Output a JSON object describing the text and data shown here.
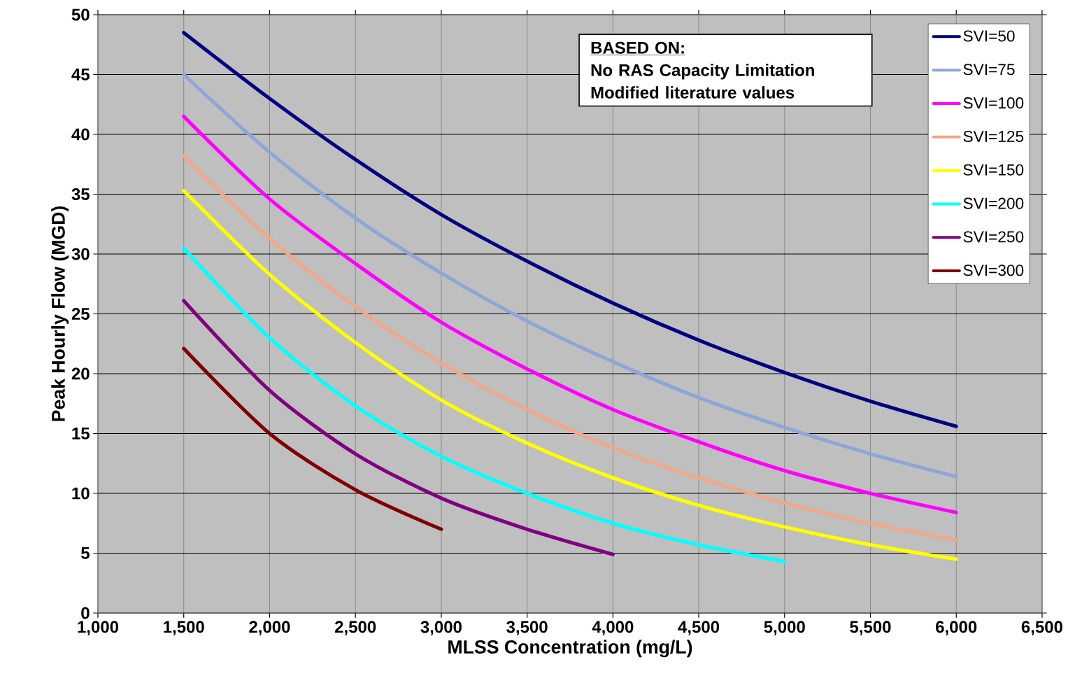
{
  "chart_data": {
    "type": "line",
    "xlabel": "MLSS Concentration (mg/L)",
    "ylabel": "Peak Hourly Flow (MGD)",
    "x": [
      1500,
      2000,
      2500,
      3000,
      3500,
      4000,
      4500,
      5000,
      5500,
      6000
    ],
    "xlim": [
      1000,
      6500
    ],
    "xticks": [
      {
        "value": 1000,
        "label": "1,000"
      },
      {
        "value": 1500,
        "label": "1,500"
      },
      {
        "value": 2000,
        "label": "2,000"
      },
      {
        "value": 2500,
        "label": "2,500"
      },
      {
        "value": 3000,
        "label": "3,000"
      },
      {
        "value": 3500,
        "label": "3,500"
      },
      {
        "value": 4000,
        "label": "4,000"
      },
      {
        "value": 4500,
        "label": "4,500"
      },
      {
        "value": 5000,
        "label": "5,000"
      },
      {
        "value": 5500,
        "label": "5,500"
      },
      {
        "value": 6000,
        "label": "6,000"
      },
      {
        "value": 6500,
        "label": "6,500"
      }
    ],
    "ylim": [
      0,
      50
    ],
    "yticks": [
      0,
      5,
      10,
      15,
      20,
      25,
      30,
      35,
      40,
      45,
      50
    ],
    "grid": true,
    "legend": "top right",
    "marker": "none",
    "line_style": "solid",
    "annotations": [
      "BASED ON:",
      "No RAS Capacity Limitation",
      "Modified literature values"
    ],
    "series": [
      {
        "name": "SVI=50",
        "color": "#000080",
        "values": [
          48.5,
          43.0,
          37.9,
          33.3,
          29.4,
          25.9,
          22.8,
          20.1,
          17.7,
          15.6
        ]
      },
      {
        "name": "SVI=75",
        "color": "#8ea5d8",
        "values": [
          45.0,
          38.5,
          33.0,
          28.4,
          24.4,
          21.0,
          18.0,
          15.5,
          13.3,
          11.4
        ]
      },
      {
        "name": "SVI=100",
        "color": "#ff00ff",
        "values": [
          41.5,
          34.6,
          29.2,
          24.3,
          20.4,
          17.0,
          14.3,
          11.9,
          10.0,
          8.4
        ]
      },
      {
        "name": "SVI=125",
        "color": "#f0a888",
        "values": [
          38.2,
          31.3,
          25.6,
          20.9,
          17.0,
          13.8,
          11.3,
          9.2,
          7.5,
          6.1
        ]
      },
      {
        "name": "SVI=150",
        "color": "#ffff00",
        "values": [
          35.3,
          28.3,
          22.6,
          17.8,
          14.2,
          11.3,
          9.0,
          7.2,
          5.7,
          4.5
        ]
      },
      {
        "name": "SVI=200",
        "color": "#00ffff",
        "values": [
          30.5,
          23.0,
          17.3,
          13.1,
          10.0,
          7.5,
          5.7,
          4.3,
          null,
          null
        ]
      },
      {
        "name": "SVI=250",
        "color": "#800080",
        "values": [
          26.1,
          18.6,
          13.3,
          9.6,
          7.0,
          4.9,
          null,
          null,
          null,
          null
        ]
      },
      {
        "name": "SVI=300",
        "color": "#800000",
        "values": [
          22.1,
          15.0,
          10.3,
          7.0,
          null,
          null,
          null,
          null,
          null,
          null
        ]
      }
    ]
  }
}
